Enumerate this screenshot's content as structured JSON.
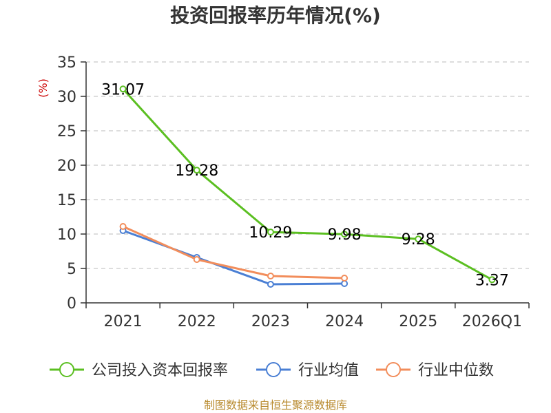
{
  "chart_data": {
    "type": "line",
    "title": "投资回报率历年情况(%)",
    "xlabel": "",
    "ylabel": "(%)",
    "categories": [
      "2021",
      "2022",
      "2023",
      "2024",
      "2025",
      "2026Q1"
    ],
    "ylim": [
      0,
      35
    ],
    "yticks": [
      0,
      5,
      10,
      15,
      20,
      25,
      30,
      35
    ],
    "grid": true,
    "legend_position": "bottom",
    "series": [
      {
        "name": "公司投入资本回报率",
        "color": "#5bbf21",
        "values": [
          31.07,
          19.28,
          10.29,
          9.98,
          9.28,
          3.37
        ],
        "data_labels": [
          "31.07",
          "19.28",
          "10.29",
          "9.98",
          "9.28",
          "3.37"
        ]
      },
      {
        "name": "行业均值",
        "color": "#4a7fd4",
        "values": [
          10.5,
          6.6,
          2.7,
          2.8,
          null,
          null
        ]
      },
      {
        "name": "行业中位数",
        "color": "#f28d5b",
        "values": [
          11.1,
          6.3,
          3.9,
          3.6,
          null,
          null
        ]
      }
    ],
    "source": "制图数据来自恒生聚源数据库"
  }
}
